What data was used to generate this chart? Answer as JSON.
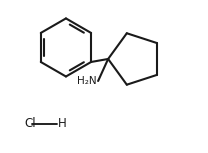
{
  "background_color": "#ffffff",
  "line_color": "#1a1a1a",
  "line_width": 1.5,
  "text_color": "#1a1a1a",
  "nh2_label": "H₂N",
  "hcl_h": "H",
  "hcl_cl": "Cl",
  "figsize": [
    2.08,
    1.53
  ],
  "dpi": 100,
  "xlim": [
    0,
    10
  ],
  "ylim": [
    0,
    7.5
  ]
}
